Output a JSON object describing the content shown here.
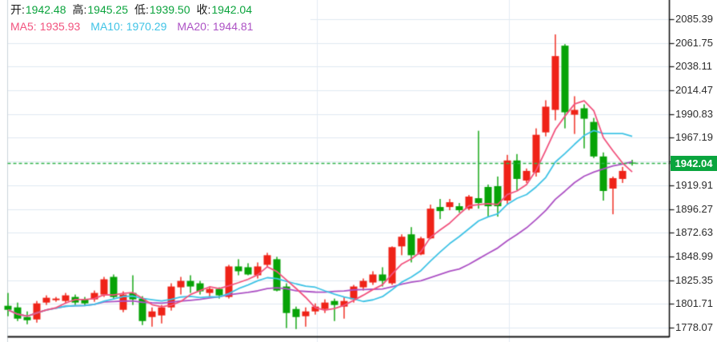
{
  "header": {
    "ohlc": [
      {
        "name": "open",
        "label": "开:",
        "value": "1942.48"
      },
      {
        "name": "high",
        "label": "高:",
        "value": "1945.25"
      },
      {
        "name": "low",
        "label": "低:",
        "value": "1939.50"
      },
      {
        "name": "close",
        "label": "收:",
        "value": "1942.04"
      }
    ],
    "value_color": "#0aa33c",
    "label_color": "#1a1a1a",
    "ma": [
      {
        "label": "MA5:",
        "value": "1935.93"
      },
      {
        "label": "MA10:",
        "value": "1970.29"
      },
      {
        "label": "MA20:",
        "value": "1944.81"
      }
    ]
  },
  "y_axis": {
    "labels": [
      "2085.39",
      "2061.75",
      "2038.11",
      "2014.47",
      "1990.83",
      "1967.19",
      "1919.91",
      "1896.27",
      "1872.63",
      "1848.99",
      "1825.35",
      "1801.71",
      "1778.07"
    ],
    "text_color": "#2d2d2d"
  },
  "current_price": {
    "value": "1942.04",
    "price": 1942.04,
    "box_color": "#0aa53e",
    "text_color": "#ffffff",
    "line_color": "#2eb34a"
  },
  "chart_data": {
    "type": "candlestick",
    "convention": "red = up (close >= open), green = down",
    "title": "",
    "value_axis": {
      "top": 2085.39,
      "bottom": 1778.07,
      "step": 23.64,
      "gridline_values": [
        2085.39,
        2061.75,
        2038.11,
        2014.47,
        1990.83,
        1967.19,
        1943.55,
        1919.91,
        1896.27,
        1872.63,
        1848.99,
        1825.35,
        1801.71,
        1778.07
      ]
    },
    "up_color": "#ef2318",
    "down_color": "#07a307",
    "grid_color": "#dfe9f2",
    "vgrid_color": "#e4ebf3",
    "axis_line_color": "#151515",
    "ma_series": [
      {
        "name": "MA5",
        "period": 5,
        "color": "#f2537e",
        "last_value": 1935.93
      },
      {
        "name": "MA10",
        "period": 10,
        "color": "#3fc3e6",
        "last_value": 1970.29
      },
      {
        "name": "MA20",
        "period": 20,
        "color": "#ad52c5",
        "last_value": 1944.81
      }
    ],
    "candles_format": [
      "open",
      "high",
      "low",
      "close"
    ],
    "candles": [
      [
        1799.8,
        1812.6,
        1789.4,
        1795.8
      ],
      [
        1798.2,
        1803.0,
        1784.6,
        1787.0
      ],
      [
        1788.6,
        1794.2,
        1781.4,
        1785.4
      ],
      [
        1786.2,
        1804.6,
        1783.0,
        1802.2
      ],
      [
        1803.0,
        1810.2,
        1800.6,
        1807.8
      ],
      [
        1805.4,
        1808.6,
        1803.8,
        1807.0
      ],
      [
        1804.6,
        1812.6,
        1802.2,
        1810.2
      ],
      [
        1808.6,
        1811.0,
        1800.6,
        1803.0
      ],
      [
        1806.2,
        1808.6,
        1799.8,
        1802.2
      ],
      [
        1806.2,
        1815.0,
        1803.8,
        1812.6
      ],
      [
        1811.0,
        1828.6,
        1808.6,
        1826.2
      ],
      [
        1828.6,
        1831.0,
        1806.2,
        1808.6
      ],
      [
        1795.8,
        1814.2,
        1793.4,
        1811.0
      ],
      [
        1812.6,
        1830.2,
        1800.6,
        1806.2
      ],
      [
        1807.0,
        1809.4,
        1780.6,
        1784.6
      ],
      [
        1788.6,
        1798.2,
        1779.0,
        1794.2
      ],
      [
        1790.2,
        1800.6,
        1782.2,
        1798.2
      ],
      [
        1798.2,
        1822.2,
        1795.0,
        1819.0
      ],
      [
        1818.2,
        1828.6,
        1811.0,
        1824.6
      ],
      [
        1824.6,
        1830.2,
        1812.6,
        1819.0
      ],
      [
        1822.2,
        1824.6,
        1811.0,
        1814.2
      ],
      [
        1812.6,
        1819.0,
        1808.6,
        1816.6
      ],
      [
        1816.6,
        1818.2,
        1807.0,
        1810.2
      ],
      [
        1808.6,
        1840.6,
        1807.0,
        1839.0
      ],
      [
        1839.0,
        1846.2,
        1830.2,
        1834.2
      ],
      [
        1838.2,
        1842.2,
        1830.2,
        1831.0
      ],
      [
        1830.2,
        1843.0,
        1827.0,
        1839.0
      ],
      [
        1840.6,
        1852.6,
        1838.2,
        1850.2
      ],
      [
        1846.2,
        1848.6,
        1814.2,
        1815.0
      ],
      [
        1819.0,
        1822.2,
        1777.6,
        1792.6
      ],
      [
        1796.6,
        1799.0,
        1776.6,
        1788.6
      ],
      [
        1789.4,
        1798.2,
        1779.0,
        1794.2
      ],
      [
        1794.2,
        1802.2,
        1791.0,
        1799.0
      ],
      [
        1796.6,
        1806.2,
        1792.6,
        1803.0
      ],
      [
        1804.6,
        1807.0,
        1784.6,
        1800.6
      ],
      [
        1799.0,
        1808.6,
        1787.0,
        1804.6
      ],
      [
        1806.2,
        1820.6,
        1803.0,
        1819.0
      ],
      [
        1818.2,
        1827.0,
        1815.0,
        1824.6
      ],
      [
        1823.0,
        1834.2,
        1820.6,
        1831.0
      ],
      [
        1831.0,
        1838.2,
        1819.0,
        1824.6
      ],
      [
        1822.2,
        1859.0,
        1820.6,
        1858.2
      ],
      [
        1859.0,
        1871.0,
        1850.2,
        1868.6
      ],
      [
        1871.0,
        1878.2,
        1843.0,
        1850.2
      ],
      [
        1851.0,
        1868.6,
        1850.2,
        1867.0
      ],
      [
        1867.0,
        1900.6,
        1866.2,
        1896.6
      ],
      [
        1898.2,
        1906.2,
        1886.2,
        1894.2
      ],
      [
        1898.2,
        1906.2,
        1895.0,
        1903.0
      ],
      [
        1899.0,
        1902.2,
        1892.6,
        1895.0
      ],
      [
        1896.6,
        1910.2,
        1895.0,
        1908.6
      ],
      [
        1907.0,
        1974.2,
        1896.6,
        1902.2
      ],
      [
        1918.2,
        1920.6,
        1888.6,
        1899.0
      ],
      [
        1919.0,
        1928.6,
        1888.6,
        1899.0
      ],
      [
        1904.6,
        1950.2,
        1900.6,
        1944.6
      ],
      [
        1944.6,
        1951.0,
        1915.0,
        1926.2
      ],
      [
        1924.6,
        1936.6,
        1922.2,
        1934.2
      ],
      [
        1932.6,
        1976.6,
        1928.6,
        1970.2
      ],
      [
        1972.6,
        2004.6,
        1968.6,
        1998.2
      ],
      [
        1995.0,
        2070.2,
        1984.6,
        2048.6
      ],
      [
        2059.0,
        2060.6,
        1976.6,
        1992.6
      ],
      [
        1990.2,
        2008.6,
        1971.0,
        1995.0
      ],
      [
        1996.6,
        2000.6,
        1956.6,
        1986.2
      ],
      [
        1983.0,
        1987.0,
        1947.0,
        1948.6
      ],
      [
        1948.6,
        1952.6,
        1904.6,
        1914.2
      ],
      [
        1916.6,
        1928.6,
        1891.0,
        1927.0
      ],
      [
        1926.2,
        1938.2,
        1922.2,
        1934.2
      ],
      [
        1942.48,
        1945.25,
        1939.5,
        1942.04
      ]
    ]
  }
}
